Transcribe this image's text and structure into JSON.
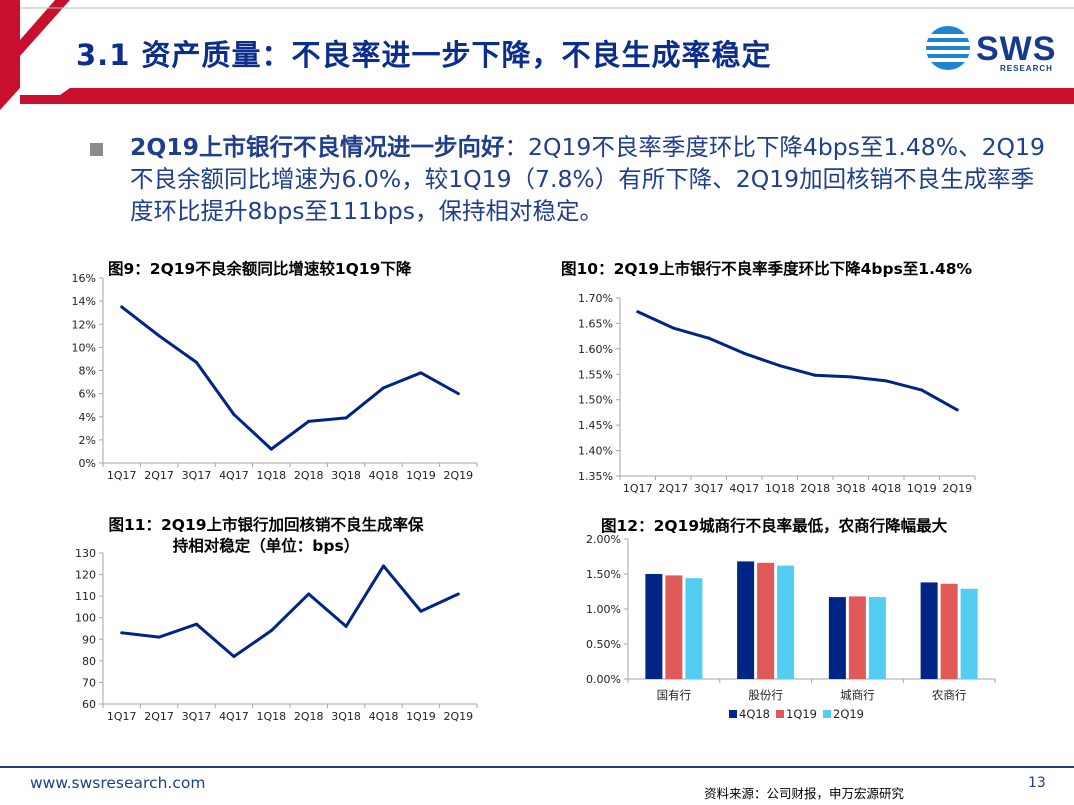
{
  "header": {
    "title": "3.1 资产质量：不良率进一步下降，不良生成率稳定",
    "logo_text": "SWS",
    "logo_sub": "RESEARCH"
  },
  "bullet": {
    "lead": "2Q19上市银行不良情况进一步向好",
    "body": "：2Q19不良率季度环比下降4bps至1.48%、2Q19不良余额同比增速为6.0%，较1Q19（7.8%）有所下降、2Q19加回核销不良生成率季度环比提升8bps至111bps，保持相对稳定。"
  },
  "colors": {
    "navy": "#002586",
    "red": "#E05A5A",
    "cyan": "#55CDF2",
    "title_blue": "#0B2D8C",
    "header_red": "#C8102E"
  },
  "chart_data": [
    {
      "type": "line",
      "title": "图9：2Q19不良余额同比增速较1Q19下降",
      "categories": [
        "1Q17",
        "2Q17",
        "3Q17",
        "4Q17",
        "1Q18",
        "2Q18",
        "3Q18",
        "4Q18",
        "1Q19",
        "2Q19"
      ],
      "series": [
        {
          "values": [
            13.5,
            11.0,
            8.7,
            4.2,
            1.2,
            3.6,
            3.9,
            6.5,
            7.8,
            6.0
          ]
        }
      ],
      "ylim": [
        0,
        16
      ],
      "yticks": [
        0,
        2,
        4,
        6,
        8,
        10,
        12,
        14,
        16
      ],
      "ytick_labels": [
        "0%",
        "2%",
        "4%",
        "6%",
        "8%",
        "10%",
        "12%",
        "14%",
        "16%"
      ],
      "color": "#002586",
      "grid": false
    },
    {
      "type": "line",
      "title": "图10：2Q19上市银行不良率季度环比下降4bps至1.48%",
      "categories": [
        "1Q17",
        "2Q17",
        "3Q17",
        "4Q17",
        "1Q18",
        "2Q18",
        "3Q18",
        "4Q18",
        "1Q19",
        "2Q19"
      ],
      "series": [
        {
          "values": [
            1.673,
            1.641,
            1.621,
            1.591,
            1.567,
            1.548,
            1.545,
            1.537,
            1.519,
            1.48
          ]
        }
      ],
      "ylim": [
        1.35,
        1.7
      ],
      "yticks": [
        1.35,
        1.4,
        1.45,
        1.5,
        1.55,
        1.6,
        1.65,
        1.7
      ],
      "ytick_labels": [
        "1.35%",
        "1.40%",
        "1.45%",
        "1.50%",
        "1.55%",
        "1.60%",
        "1.65%",
        "1.70%"
      ],
      "color": "#002586",
      "grid": false
    },
    {
      "type": "line",
      "title": "图11：2Q19上市银行加回核销不良生成率保持相对稳定（单位：bps）",
      "title_lines": [
        "图11：2Q19上市银行加回核销不良生成率保",
        "持相对稳定（单位：bps）"
      ],
      "categories": [
        "1Q17",
        "2Q17",
        "3Q17",
        "4Q17",
        "1Q18",
        "2Q18",
        "3Q18",
        "4Q18",
        "1Q19",
        "2Q19"
      ],
      "series": [
        {
          "values": [
            93,
            91,
            97,
            82,
            94,
            111,
            96,
            124,
            103,
            111
          ]
        }
      ],
      "ylim": [
        60,
        130
      ],
      "yticks": [
        60,
        70,
        80,
        90,
        100,
        110,
        120,
        130
      ],
      "ytick_labels": [
        "60",
        "70",
        "80",
        "90",
        "100",
        "110",
        "120",
        "130"
      ],
      "color": "#002586",
      "grid": false
    },
    {
      "type": "bar",
      "title": "图12：2Q19城商行不良率最低，农商行降幅最大",
      "categories": [
        "国有行",
        "股份行",
        "城商行",
        "农商行"
      ],
      "series": [
        {
          "name": "4Q18",
          "color": "#002586",
          "values": [
            1.5,
            1.68,
            1.17,
            1.38
          ]
        },
        {
          "name": "1Q19",
          "color": "#E05A5A",
          "values": [
            1.48,
            1.66,
            1.18,
            1.36
          ]
        },
        {
          "name": "2Q19",
          "color": "#55CDF2",
          "values": [
            1.44,
            1.62,
            1.17,
            1.29
          ]
        }
      ],
      "ylim": [
        0,
        2.0
      ],
      "yticks": [
        0,
        0.5,
        1.0,
        1.5,
        2.0
      ],
      "ytick_labels": [
        "0.00%",
        "0.50%",
        "1.00%",
        "1.50%",
        "2.00%"
      ],
      "legend": "bottom",
      "grid": false
    }
  ],
  "footer": {
    "url": "www.swsresearch.com",
    "source": "资料来源：公司财报，申万宏源研究",
    "page": "13"
  }
}
